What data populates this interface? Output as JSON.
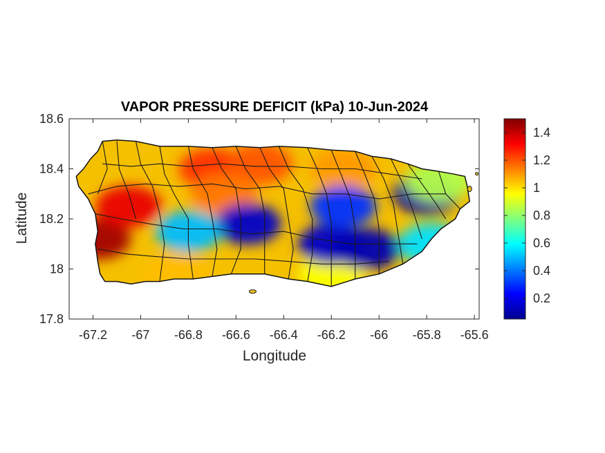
{
  "chart_data": {
    "type": "heatmap",
    "title": "VAPOR PRESSURE DEFICIT (kPa) 10-Jun-2024",
    "xlabel": "Longitude",
    "ylabel": "Latitude",
    "xlim": [
      -67.3,
      -65.58
    ],
    "ylim": [
      17.8,
      18.6
    ],
    "x_ticks": [
      -67.2,
      -67,
      -66.8,
      -66.6,
      -66.4,
      -66.2,
      -66,
      -65.8,
      -65.6
    ],
    "x_tick_labels": [
      "-67.2",
      "-67",
      "-66.8",
      "-66.6",
      "-66.4",
      "-66.2",
      "-66",
      "-65.8",
      "-65.6"
    ],
    "y_ticks": [
      17.8,
      18,
      18.2,
      18.4,
      18.6
    ],
    "y_tick_labels": [
      "17.8",
      "18",
      "18.2",
      "18.4",
      "18.6"
    ],
    "colorbar": {
      "colormap": "jet",
      "range": [
        0.05,
        1.5
      ],
      "ticks": [
        0.2,
        0.4,
        0.6,
        0.8,
        1,
        1.2,
        1.4
      ],
      "tick_labels": [
        "0.2",
        "0.4",
        "0.6",
        "0.8",
        "1",
        "1.2",
        "1.4"
      ]
    },
    "grid": false,
    "region": "Puerto Rico",
    "field_features": [
      {
        "lon": -67.18,
        "lat": 18.12,
        "vpd": 1.45
      },
      {
        "lon": -67.05,
        "lat": 18.25,
        "vpd": 1.35
      },
      {
        "lon": -66.7,
        "lat": 18.4,
        "vpd": 1.25
      },
      {
        "lon": -66.5,
        "lat": 18.42,
        "vpd": 1.2
      },
      {
        "lon": -66.65,
        "lat": 18.3,
        "vpd": 1.15
      },
      {
        "lon": -66.15,
        "lat": 18.4,
        "vpd": 1.1
      },
      {
        "lon": -66.2,
        "lat": 17.98,
        "vpd": 0.95
      },
      {
        "lon": -66.85,
        "lat": 17.98,
        "vpd": 1.05
      },
      {
        "lon": -66.55,
        "lat": 18.18,
        "vpd": 0.15
      },
      {
        "lon": -66.2,
        "lat": 18.1,
        "vpd": 0.15
      },
      {
        "lon": -66.05,
        "lat": 18.08,
        "vpd": 0.12
      },
      {
        "lon": -66.15,
        "lat": 18.25,
        "vpd": 0.3
      },
      {
        "lon": -65.8,
        "lat": 18.3,
        "vpd": 0.1
      },
      {
        "lon": -66.8,
        "lat": 18.15,
        "vpd": 0.5
      },
      {
        "lon": -65.78,
        "lat": 18.1,
        "vpd": 0.55
      },
      {
        "lon": -65.75,
        "lat": 18.35,
        "vpd": 0.85
      }
    ]
  }
}
